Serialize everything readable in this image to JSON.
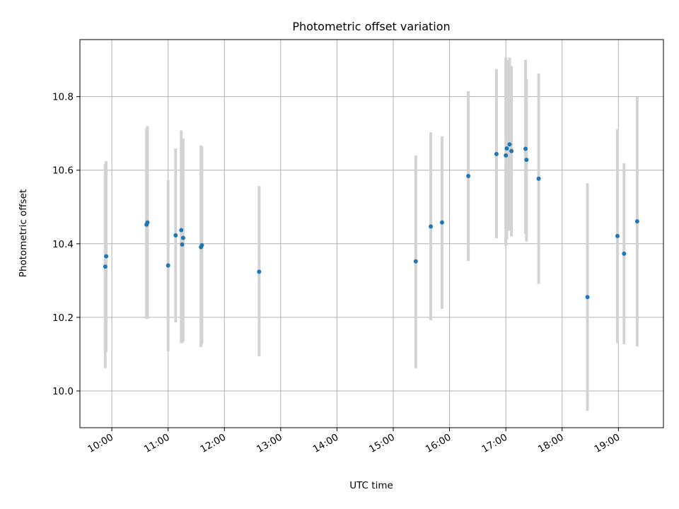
{
  "chart_data": {
    "type": "scatter",
    "title": "Photometric offset variation",
    "xlabel": "UTC time",
    "ylabel": "Photometric offset",
    "xlim": [
      "09:26",
      "19:48"
    ],
    "ylim": [
      9.9,
      10.955
    ],
    "x_ticks": [
      "10:00",
      "11:00",
      "12:00",
      "13:00",
      "14:00",
      "15:00",
      "16:00",
      "17:00",
      "18:00",
      "19:00"
    ],
    "y_ticks": [
      10.0,
      10.2,
      10.4,
      10.6,
      10.8
    ],
    "y_tick_labels": [
      "10.0",
      "10.2",
      "10.4",
      "10.6",
      "10.8"
    ],
    "grid": true,
    "series": [
      {
        "color": "#1f77b4",
        "errorbar_color": "#d3d3d3",
        "points": [
          {
            "x": "09:53",
            "y": 10.338,
            "ylo": 10.062,
            "yhi": 10.617
          },
          {
            "x": "09:54",
            "y": 10.366,
            "ylo": 10.106,
            "yhi": 10.625
          },
          {
            "x": "10:37",
            "y": 10.452,
            "ylo": 10.196,
            "yhi": 10.714
          },
          {
            "x": "10:38",
            "y": 10.458,
            "ylo": 10.196,
            "yhi": 10.72
          },
          {
            "x": "11:00",
            "y": 10.341,
            "ylo": 10.108,
            "yhi": 10.573
          },
          {
            "x": "11:08",
            "y": 10.423,
            "ylo": 10.186,
            "yhi": 10.659
          },
          {
            "x": "11:14",
            "y": 10.437,
            "ylo": 10.13,
            "yhi": 10.708
          },
          {
            "x": "11:15",
            "y": 10.398,
            "ylo": 10.13,
            "yhi": 10.686
          },
          {
            "x": "11:16",
            "y": 10.416,
            "ylo": 10.135,
            "yhi": 10.686
          },
          {
            "x": "11:35",
            "y": 10.391,
            "ylo": 10.119,
            "yhi": 10.667
          },
          {
            "x": "11:36",
            "y": 10.396,
            "ylo": 10.128,
            "yhi": 10.664
          },
          {
            "x": "12:37",
            "y": 10.324,
            "ylo": 10.094,
            "yhi": 10.557
          },
          {
            "x": "15:24",
            "y": 10.352,
            "ylo": 10.062,
            "yhi": 10.64
          },
          {
            "x": "15:40",
            "y": 10.447,
            "ylo": 10.192,
            "yhi": 10.703
          },
          {
            "x": "15:52",
            "y": 10.458,
            "ylo": 10.223,
            "yhi": 10.692
          },
          {
            "x": "16:20",
            "y": 10.584,
            "ylo": 10.353,
            "yhi": 10.815
          },
          {
            "x": "16:50",
            "y": 10.644,
            "ylo": 10.415,
            "yhi": 10.875
          },
          {
            "x": "17:00",
            "y": 10.64,
            "ylo": 10.394,
            "yhi": 10.907
          },
          {
            "x": "17:01",
            "y": 10.659,
            "ylo": 10.412,
            "yhi": 10.899
          },
          {
            "x": "17:04",
            "y": 10.67,
            "ylo": 10.435,
            "yhi": 10.906
          },
          {
            "x": "17:06",
            "y": 10.652,
            "ylo": 10.42,
            "yhi": 10.883
          },
          {
            "x": "17:21",
            "y": 10.658,
            "ylo": 10.426,
            "yhi": 10.9
          },
          {
            "x": "17:22",
            "y": 10.628,
            "ylo": 10.406,
            "yhi": 10.848
          },
          {
            "x": "17:35",
            "y": 10.577,
            "ylo": 10.291,
            "yhi": 10.863
          },
          {
            "x": "18:27",
            "y": 10.255,
            "ylo": 9.946,
            "yhi": 10.565
          },
          {
            "x": "18:59",
            "y": 10.421,
            "ylo": 10.13,
            "yhi": 10.712
          },
          {
            "x": "19:06",
            "y": 10.373,
            "ylo": 10.127,
            "yhi": 10.619
          },
          {
            "x": "19:20",
            "y": 10.461,
            "ylo": 10.121,
            "yhi": 10.799
          }
        ]
      }
    ]
  }
}
